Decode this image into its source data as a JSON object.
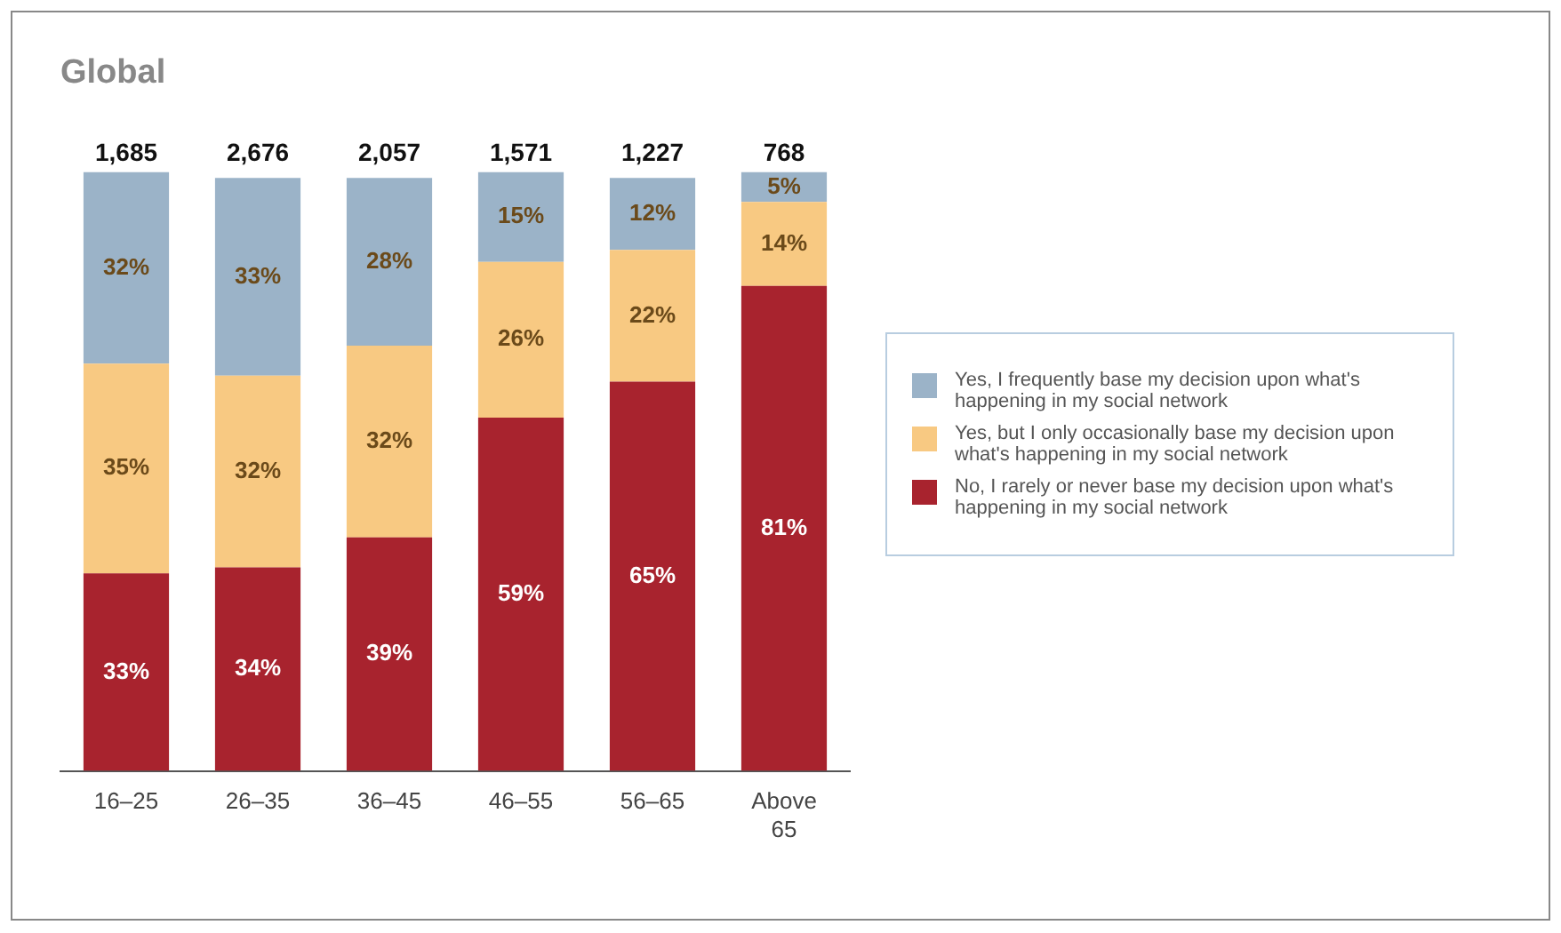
{
  "chart_data": {
    "type": "bar",
    "title": "Global",
    "stacked": true,
    "legend": "right",
    "tick_labels": "x",
    "grid": false,
    "categories": [
      "16–25",
      "26–35",
      "36–45",
      "46–55",
      "56–65",
      "Above 65"
    ],
    "annotations": [
      "1,685",
      "2,676",
      "2,057",
      "1,571",
      "1,227",
      "768"
    ],
    "series": [
      {
        "name": "No, I rarely or never base my decision upon what's happening in my social network",
        "color": "#a8232e",
        "values": [
          33,
          34,
          39,
          59,
          65,
          81
        ],
        "value_labels": [
          "33%",
          "34%",
          "39%",
          "59%",
          "65%",
          "81%"
        ]
      },
      {
        "name": "Yes, but I only occasionally base my decision upon what's happening in my social network",
        "color": "#f8c982",
        "values": [
          35,
          32,
          32,
          26,
          22,
          14
        ],
        "value_labels": [
          "35%",
          "32%",
          "32%",
          "26%",
          "22%",
          "14%"
        ]
      },
      {
        "name": "Yes, I frequently base my decision upon what's happening in my social network",
        "color": "#9bb3c8",
        "values": [
          32,
          33,
          28,
          15,
          12,
          5
        ],
        "value_labels": [
          "32%",
          "33%",
          "28%",
          "15%",
          "12%",
          "5%"
        ]
      }
    ]
  }
}
